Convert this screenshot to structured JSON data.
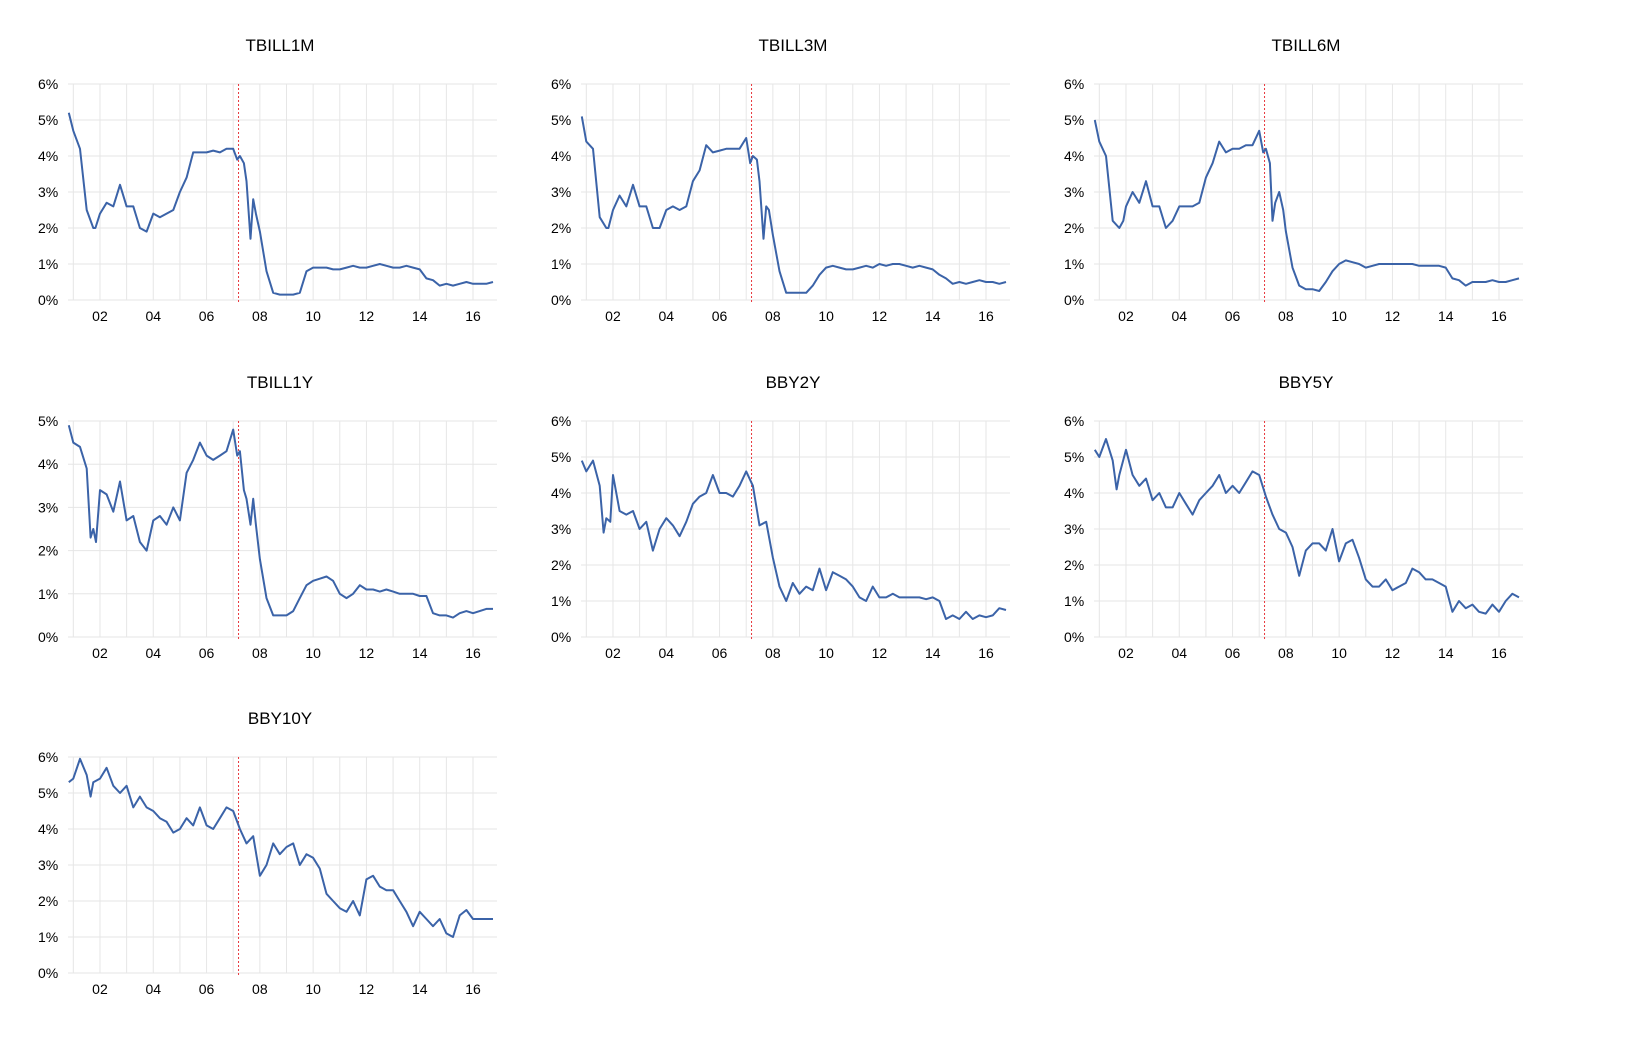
{
  "colors": {
    "line": "#3b63a8",
    "event_marker": "#e8383d",
    "grid": "#e6e6e6"
  },
  "chart_data": [
    {
      "type": "line",
      "title": "TBILL1M",
      "ylim": [
        0,
        6
      ],
      "y_ticks": [
        "0%",
        "1%",
        "2%",
        "3%",
        "4%",
        "5%",
        "6%"
      ],
      "x_ticks": [
        "02",
        "04",
        "06",
        "08",
        "10",
        "12",
        "14",
        "16"
      ],
      "xlim": [
        2000.8,
        2016.9
      ],
      "event_marker_x": 2007.2,
      "grid": true,
      "x": [
        2000.83,
        2001.0,
        2001.25,
        2001.5,
        2001.75,
        2001.83,
        2002.0,
        2002.25,
        2002.5,
        2002.75,
        2003.0,
        2003.25,
        2003.5,
        2003.75,
        2004.0,
        2004.25,
        2004.5,
        2004.75,
        2005.0,
        2005.25,
        2005.5,
        2005.75,
        2006.0,
        2006.25,
        2006.5,
        2006.75,
        2007.0,
        2007.15,
        2007.25,
        2007.4,
        2007.5,
        2007.65,
        2007.75,
        2007.85,
        2008.0,
        2008.25,
        2008.5,
        2008.75,
        2009.0,
        2009.25,
        2009.5,
        2009.75,
        2010.0,
        2010.25,
        2010.5,
        2010.75,
        2011.0,
        2011.25,
        2011.5,
        2011.75,
        2012.0,
        2012.25,
        2012.5,
        2012.75,
        2013.0,
        2013.25,
        2013.5,
        2013.75,
        2014.0,
        2014.25,
        2014.5,
        2014.75,
        2015.0,
        2015.25,
        2015.5,
        2015.75,
        2016.0,
        2016.25,
        2016.5,
        2016.75
      ],
      "y": [
        5.2,
        4.7,
        4.2,
        2.5,
        2.0,
        2.0,
        2.4,
        2.7,
        2.6,
        3.2,
        2.6,
        2.6,
        2.0,
        1.9,
        2.4,
        2.3,
        2.4,
        2.5,
        3.0,
        3.4,
        4.1,
        4.1,
        4.1,
        4.15,
        4.1,
        4.2,
        4.2,
        3.9,
        4.0,
        3.8,
        3.3,
        1.7,
        2.8,
        2.4,
        1.9,
        0.8,
        0.2,
        0.15,
        0.15,
        0.15,
        0.2,
        0.8,
        0.9,
        0.9,
        0.9,
        0.85,
        0.85,
        0.9,
        0.95,
        0.9,
        0.9,
        0.95,
        1.0,
        0.95,
        0.9,
        0.9,
        0.95,
        0.9,
        0.85,
        0.6,
        0.55,
        0.4,
        0.45,
        0.4,
        0.45,
        0.5,
        0.45,
        0.45,
        0.45,
        0.5
      ]
    },
    {
      "type": "line",
      "title": "TBILL3M",
      "ylim": [
        0,
        6
      ],
      "y_ticks": [
        "0%",
        "1%",
        "2%",
        "3%",
        "4%",
        "5%",
        "6%"
      ],
      "x_ticks": [
        "02",
        "04",
        "06",
        "08",
        "10",
        "12",
        "14",
        "16"
      ],
      "xlim": [
        2000.8,
        2016.9
      ],
      "event_marker_x": 2007.2,
      "grid": true,
      "x": [
        2000.83,
        2001.0,
        2001.25,
        2001.5,
        2001.75,
        2001.83,
        2002.0,
        2002.25,
        2002.5,
        2002.75,
        2003.0,
        2003.25,
        2003.5,
        2003.75,
        2004.0,
        2004.25,
        2004.5,
        2004.75,
        2005.0,
        2005.25,
        2005.5,
        2005.75,
        2006.0,
        2006.25,
        2006.5,
        2006.75,
        2007.0,
        2007.15,
        2007.25,
        2007.4,
        2007.5,
        2007.65,
        2007.75,
        2007.85,
        2008.0,
        2008.25,
        2008.5,
        2008.75,
        2009.0,
        2009.25,
        2009.5,
        2009.75,
        2010.0,
        2010.25,
        2010.5,
        2010.75,
        2011.0,
        2011.25,
        2011.5,
        2011.75,
        2012.0,
        2012.25,
        2012.5,
        2012.75,
        2013.0,
        2013.25,
        2013.5,
        2013.75,
        2014.0,
        2014.25,
        2014.5,
        2014.75,
        2015.0,
        2015.25,
        2015.5,
        2015.75,
        2016.0,
        2016.25,
        2016.5,
        2016.75
      ],
      "y": [
        5.1,
        4.4,
        4.2,
        2.3,
        2.0,
        2.0,
        2.5,
        2.9,
        2.6,
        3.2,
        2.6,
        2.6,
        2.0,
        2.0,
        2.5,
        2.6,
        2.5,
        2.6,
        3.3,
        3.6,
        4.3,
        4.1,
        4.15,
        4.2,
        4.2,
        4.2,
        4.5,
        3.8,
        4.0,
        3.9,
        3.3,
        1.7,
        2.6,
        2.5,
        1.8,
        0.8,
        0.2,
        0.2,
        0.2,
        0.2,
        0.4,
        0.7,
        0.9,
        0.95,
        0.9,
        0.85,
        0.85,
        0.9,
        0.95,
        0.9,
        1.0,
        0.95,
        1.0,
        1.0,
        0.95,
        0.9,
        0.95,
        0.9,
        0.85,
        0.7,
        0.6,
        0.45,
        0.5,
        0.45,
        0.5,
        0.55,
        0.5,
        0.5,
        0.45,
        0.5
      ]
    },
    {
      "type": "line",
      "title": "TBILL6M",
      "ylim": [
        0,
        6
      ],
      "y_ticks": [
        "0%",
        "1%",
        "2%",
        "3%",
        "4%",
        "5%",
        "6%"
      ],
      "x_ticks": [
        "02",
        "04",
        "06",
        "08",
        "10",
        "12",
        "14",
        "16"
      ],
      "xlim": [
        2000.8,
        2016.9
      ],
      "event_marker_x": 2007.2,
      "grid": true,
      "x": [
        2000.83,
        2001.0,
        2001.25,
        2001.5,
        2001.75,
        2001.9,
        2002.0,
        2002.25,
        2002.5,
        2002.75,
        2003.0,
        2003.25,
        2003.5,
        2003.75,
        2004.0,
        2004.25,
        2004.5,
        2004.75,
        2005.0,
        2005.25,
        2005.5,
        2005.75,
        2006.0,
        2006.25,
        2006.5,
        2006.75,
        2007.0,
        2007.15,
        2007.25,
        2007.4,
        2007.5,
        2007.6,
        2007.75,
        2007.9,
        2008.0,
        2008.25,
        2008.5,
        2008.75,
        2009.0,
        2009.25,
        2009.5,
        2009.75,
        2010.0,
        2010.25,
        2010.5,
        2010.75,
        2011.0,
        2011.25,
        2011.5,
        2011.75,
        2012.0,
        2012.25,
        2012.5,
        2012.75,
        2013.0,
        2013.25,
        2013.5,
        2013.75,
        2014.0,
        2014.25,
        2014.5,
        2014.75,
        2015.0,
        2015.25,
        2015.5,
        2015.75,
        2016.0,
        2016.25,
        2016.5,
        2016.75
      ],
      "y": [
        5.0,
        4.4,
        4.0,
        2.2,
        2.0,
        2.2,
        2.6,
        3.0,
        2.7,
        3.3,
        2.6,
        2.6,
        2.0,
        2.2,
        2.6,
        2.6,
        2.6,
        2.7,
        3.4,
        3.8,
        4.4,
        4.1,
        4.2,
        4.2,
        4.3,
        4.3,
        4.7,
        4.1,
        4.2,
        3.8,
        2.2,
        2.7,
        3.0,
        2.5,
        1.9,
        0.9,
        0.4,
        0.3,
        0.3,
        0.25,
        0.5,
        0.8,
        1.0,
        1.1,
        1.05,
        1.0,
        0.9,
        0.95,
        1.0,
        1.0,
        1.0,
        1.0,
        1.0,
        1.0,
        0.95,
        0.95,
        0.95,
        0.95,
        0.9,
        0.6,
        0.55,
        0.4,
        0.5,
        0.5,
        0.5,
        0.55,
        0.5,
        0.5,
        0.55,
        0.6
      ]
    },
    {
      "type": "line",
      "title": "TBILL1Y",
      "ylim": [
        0,
        5
      ],
      "y_ticks": [
        "0%",
        "1%",
        "2%",
        "3%",
        "4%",
        "5%"
      ],
      "x_ticks": [
        "02",
        "04",
        "06",
        "08",
        "10",
        "12",
        "14",
        "16"
      ],
      "xlim": [
        2000.8,
        2016.9
      ],
      "event_marker_x": 2007.2,
      "grid": true,
      "x": [
        2000.83,
        2001.0,
        2001.25,
        2001.5,
        2001.65,
        2001.75,
        2001.85,
        2002.0,
        2002.25,
        2002.5,
        2002.75,
        2003.0,
        2003.25,
        2003.5,
        2003.75,
        2004.0,
        2004.25,
        2004.5,
        2004.75,
        2005.0,
        2005.25,
        2005.5,
        2005.75,
        2006.0,
        2006.25,
        2006.5,
        2006.75,
        2007.0,
        2007.15,
        2007.25,
        2007.4,
        2007.5,
        2007.65,
        2007.75,
        2007.85,
        2008.0,
        2008.25,
        2008.5,
        2008.75,
        2009.0,
        2009.25,
        2009.5,
        2009.75,
        2010.0,
        2010.25,
        2010.5,
        2010.75,
        2011.0,
        2011.25,
        2011.5,
        2011.75,
        2012.0,
        2012.25,
        2012.5,
        2012.75,
        2013.0,
        2013.25,
        2013.5,
        2013.75,
        2014.0,
        2014.25,
        2014.5,
        2014.75,
        2015.0,
        2015.25,
        2015.5,
        2015.75,
        2016.0,
        2016.25,
        2016.5,
        2016.75
      ],
      "y": [
        4.9,
        4.5,
        4.4,
        3.9,
        2.3,
        2.5,
        2.2,
        3.4,
        3.3,
        2.9,
        3.6,
        2.7,
        2.8,
        2.2,
        2.0,
        2.7,
        2.8,
        2.6,
        3.0,
        2.7,
        3.8,
        4.1,
        4.5,
        4.2,
        4.1,
        4.2,
        4.3,
        4.8,
        4.2,
        4.3,
        3.4,
        3.2,
        2.6,
        3.2,
        2.6,
        1.8,
        0.9,
        0.5,
        0.5,
        0.5,
        0.6,
        0.9,
        1.2,
        1.3,
        1.35,
        1.4,
        1.3,
        1.0,
        0.9,
        1.0,
        1.2,
        1.1,
        1.1,
        1.05,
        1.1,
        1.05,
        1.0,
        1.0,
        1.0,
        0.95,
        0.95,
        0.55,
        0.5,
        0.5,
        0.45,
        0.55,
        0.6,
        0.55,
        0.6,
        0.65,
        0.65
      ]
    },
    {
      "type": "line",
      "title": "BBY2Y",
      "ylim": [
        0,
        6
      ],
      "y_ticks": [
        "0%",
        "1%",
        "2%",
        "3%",
        "4%",
        "5%",
        "6%"
      ],
      "x_ticks": [
        "02",
        "04",
        "06",
        "08",
        "10",
        "12",
        "14",
        "16"
      ],
      "xlim": [
        2000.8,
        2016.9
      ],
      "event_marker_x": 2007.2,
      "grid": true,
      "x": [
        2000.83,
        2001.0,
        2001.25,
        2001.5,
        2001.65,
        2001.75,
        2001.9,
        2002.0,
        2002.25,
        2002.5,
        2002.75,
        2003.0,
        2003.25,
        2003.5,
        2003.75,
        2004.0,
        2004.25,
        2004.5,
        2004.75,
        2005.0,
        2005.25,
        2005.5,
        2005.75,
        2006.0,
        2006.25,
        2006.5,
        2006.75,
        2007.0,
        2007.25,
        2007.5,
        2007.75,
        2008.0,
        2008.25,
        2008.5,
        2008.75,
        2009.0,
        2009.25,
        2009.5,
        2009.75,
        2010.0,
        2010.25,
        2010.5,
        2010.75,
        2011.0,
        2011.25,
        2011.5,
        2011.75,
        2012.0,
        2012.25,
        2012.5,
        2012.75,
        2013.0,
        2013.25,
        2013.5,
        2013.75,
        2014.0,
        2014.25,
        2014.5,
        2014.75,
        2015.0,
        2015.25,
        2015.5,
        2015.75,
        2016.0,
        2016.25,
        2016.5,
        2016.75
      ],
      "y": [
        4.9,
        4.6,
        4.9,
        4.2,
        2.9,
        3.3,
        3.2,
        4.5,
        3.5,
        3.4,
        3.5,
        3.0,
        3.2,
        2.4,
        3.0,
        3.3,
        3.1,
        2.8,
        3.2,
        3.7,
        3.9,
        4.0,
        4.5,
        4.0,
        4.0,
        3.9,
        4.2,
        4.6,
        4.2,
        3.1,
        3.2,
        2.2,
        1.4,
        1.0,
        1.5,
        1.2,
        1.4,
        1.3,
        1.9,
        1.3,
        1.8,
        1.7,
        1.6,
        1.4,
        1.1,
        1.0,
        1.4,
        1.1,
        1.1,
        1.2,
        1.1,
        1.1,
        1.1,
        1.1,
        1.05,
        1.1,
        1.0,
        0.5,
        0.6,
        0.5,
        0.7,
        0.5,
        0.6,
        0.55,
        0.6,
        0.8,
        0.75
      ]
    },
    {
      "type": "line",
      "title": "BBY5Y",
      "ylim": [
        0,
        6
      ],
      "y_ticks": [
        "0%",
        "1%",
        "2%",
        "3%",
        "4%",
        "5%",
        "6%"
      ],
      "x_ticks": [
        "02",
        "04",
        "06",
        "08",
        "10",
        "12",
        "14",
        "16"
      ],
      "xlim": [
        2000.8,
        2016.9
      ],
      "event_marker_x": 2007.2,
      "grid": true,
      "x": [
        2000.83,
        2001.0,
        2001.25,
        2001.5,
        2001.65,
        2001.75,
        2002.0,
        2002.25,
        2002.5,
        2002.75,
        2003.0,
        2003.25,
        2003.5,
        2003.75,
        2004.0,
        2004.25,
        2004.5,
        2004.75,
        2005.0,
        2005.25,
        2005.5,
        2005.75,
        2006.0,
        2006.25,
        2006.5,
        2006.75,
        2007.0,
        2007.25,
        2007.5,
        2007.75,
        2008.0,
        2008.25,
        2008.5,
        2008.75,
        2009.0,
        2009.25,
        2009.5,
        2009.75,
        2010.0,
        2010.25,
        2010.5,
        2010.75,
        2011.0,
        2011.25,
        2011.5,
        2011.75,
        2012.0,
        2012.25,
        2012.5,
        2012.75,
        2013.0,
        2013.25,
        2013.5,
        2013.75,
        2014.0,
        2014.25,
        2014.5,
        2014.75,
        2015.0,
        2015.25,
        2015.5,
        2015.75,
        2016.0,
        2016.25,
        2016.5,
        2016.75
      ],
      "y": [
        5.2,
        5.0,
        5.5,
        4.9,
        4.1,
        4.5,
        5.2,
        4.5,
        4.2,
        4.4,
        3.8,
        4.0,
        3.6,
        3.6,
        4.0,
        3.7,
        3.4,
        3.8,
        4.0,
        4.2,
        4.5,
        4.0,
        4.2,
        4.0,
        4.3,
        4.6,
        4.5,
        3.9,
        3.4,
        3.0,
        2.9,
        2.5,
        1.7,
        2.4,
        2.6,
        2.6,
        2.4,
        3.0,
        2.1,
        2.6,
        2.7,
        2.2,
        1.6,
        1.4,
        1.4,
        1.6,
        1.3,
        1.4,
        1.5,
        1.9,
        1.8,
        1.6,
        1.6,
        1.5,
        1.4,
        0.7,
        1.0,
        0.8,
        0.9,
        0.7,
        0.65,
        0.9,
        0.7,
        1.0,
        1.2,
        1.1
      ]
    },
    {
      "type": "line",
      "title": "BBY10Y",
      "ylim": [
        0,
        6
      ],
      "y_ticks": [
        "0%",
        "1%",
        "2%",
        "3%",
        "4%",
        "5%",
        "6%"
      ],
      "x_ticks": [
        "02",
        "04",
        "06",
        "08",
        "10",
        "12",
        "14",
        "16"
      ],
      "xlim": [
        2000.8,
        2016.9
      ],
      "event_marker_x": 2007.2,
      "grid": true,
      "x": [
        2000.83,
        2001.0,
        2001.25,
        2001.5,
        2001.65,
        2001.75,
        2002.0,
        2002.25,
        2002.5,
        2002.75,
        2003.0,
        2003.25,
        2003.5,
        2003.75,
        2004.0,
        2004.25,
        2004.5,
        2004.75,
        2005.0,
        2005.25,
        2005.5,
        2005.75,
        2006.0,
        2006.25,
        2006.5,
        2006.75,
        2007.0,
        2007.25,
        2007.5,
        2007.75,
        2008.0,
        2008.25,
        2008.5,
        2008.75,
        2009.0,
        2009.25,
        2009.5,
        2009.75,
        2010.0,
        2010.25,
        2010.5,
        2010.75,
        2011.0,
        2011.25,
        2011.5,
        2011.75,
        2012.0,
        2012.25,
        2012.5,
        2012.75,
        2013.0,
        2013.25,
        2013.5,
        2013.75,
        2014.0,
        2014.25,
        2014.5,
        2014.75,
        2015.0,
        2015.25,
        2015.5,
        2015.75,
        2016.0,
        2016.25,
        2016.5,
        2016.75
      ],
      "y": [
        5.3,
        5.4,
        5.95,
        5.5,
        4.9,
        5.3,
        5.4,
        5.7,
        5.2,
        5.0,
        5.2,
        4.6,
        4.9,
        4.6,
        4.5,
        4.3,
        4.2,
        3.9,
        4.0,
        4.3,
        4.1,
        4.6,
        4.1,
        4.0,
        4.3,
        4.6,
        4.5,
        4.0,
        3.6,
        3.8,
        2.7,
        3.0,
        3.6,
        3.3,
        3.5,
        3.6,
        3.0,
        3.3,
        3.2,
        2.9,
        2.2,
        2.0,
        1.8,
        1.7,
        2.0,
        1.6,
        2.6,
        2.7,
        2.4,
        2.3,
        2.3,
        2.0,
        1.7,
        1.3,
        1.7,
        1.5,
        1.3,
        1.5,
        1.1,
        1.0,
        1.6,
        1.75,
        1.5,
        1.5,
        1.5,
        1.5
      ]
    }
  ]
}
